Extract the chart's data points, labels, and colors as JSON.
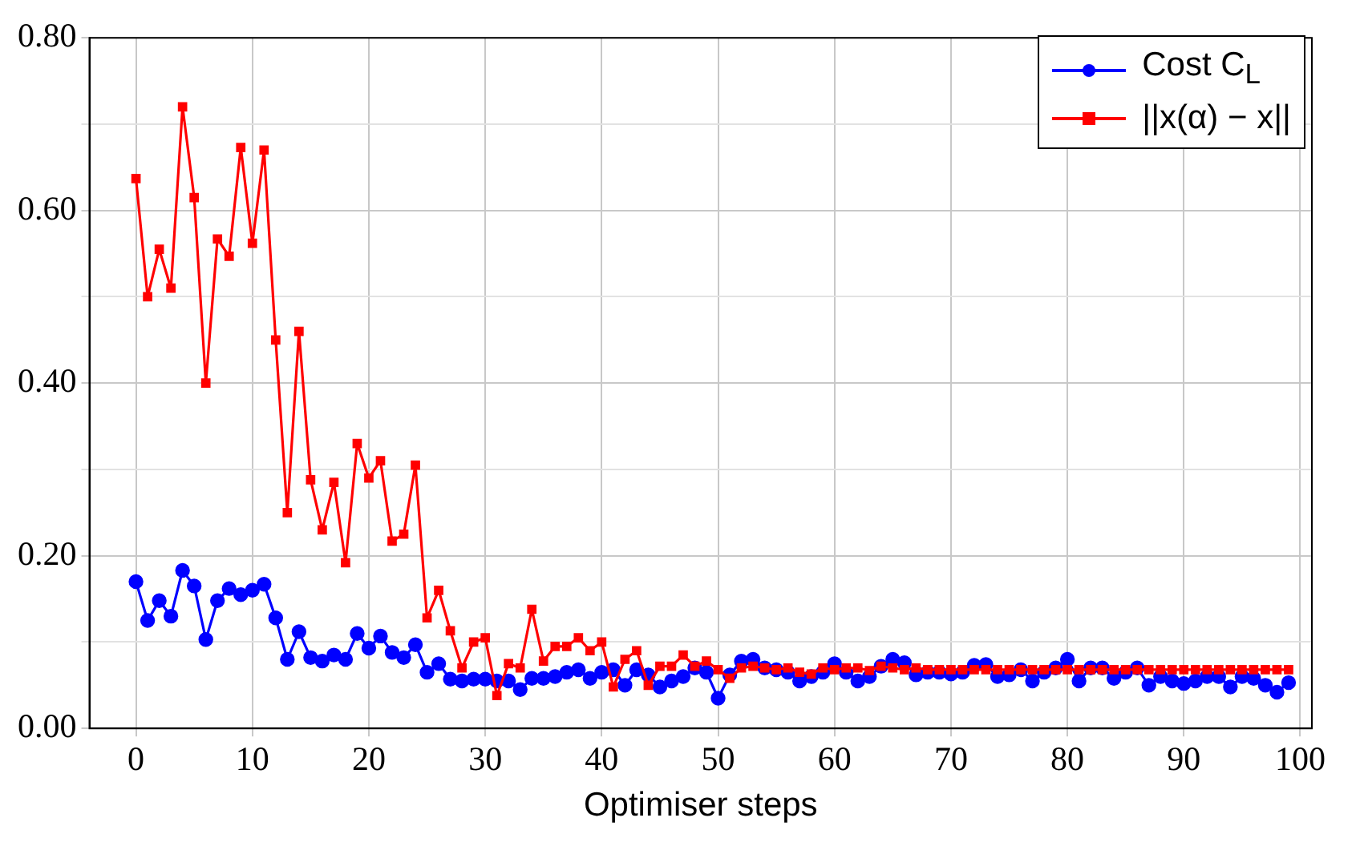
{
  "chart_data": {
    "type": "line",
    "xlabel": "Optimiser steps",
    "x": [
      0,
      1,
      2,
      3,
      4,
      5,
      6,
      7,
      8,
      9,
      10,
      11,
      12,
      13,
      14,
      15,
      16,
      17,
      18,
      19,
      20,
      21,
      22,
      23,
      24,
      25,
      26,
      27,
      28,
      29,
      30,
      31,
      32,
      33,
      34,
      35,
      36,
      37,
      38,
      39,
      40,
      41,
      42,
      43,
      44,
      45,
      46,
      47,
      48,
      49,
      50,
      51,
      52,
      53,
      54,
      55,
      56,
      57,
      58,
      59,
      60,
      61,
      62,
      63,
      64,
      65,
      66,
      67,
      68,
      69,
      70,
      71,
      72,
      73,
      74,
      75,
      76,
      77,
      78,
      79,
      80,
      81,
      82,
      83,
      84,
      85,
      86,
      87,
      88,
      89,
      90,
      91,
      92,
      93,
      94,
      95,
      96,
      97,
      98,
      99
    ],
    "series": [
      {
        "name": "Cost C$_{L}$",
        "color": "#0000ff",
        "marker": "circle",
        "values": [
          0.17,
          0.125,
          0.148,
          0.13,
          0.183,
          0.165,
          0.103,
          0.148,
          0.162,
          0.155,
          0.16,
          0.167,
          0.128,
          0.08,
          0.112,
          0.082,
          0.078,
          0.085,
          0.08,
          0.11,
          0.093,
          0.107,
          0.088,
          0.082,
          0.097,
          0.065,
          0.075,
          0.057,
          0.055,
          0.057,
          0.057,
          0.055,
          0.055,
          0.045,
          0.058,
          0.058,
          0.06,
          0.065,
          0.068,
          0.058,
          0.065,
          0.068,
          0.05,
          0.068,
          0.062,
          0.048,
          0.055,
          0.06,
          0.07,
          0.065,
          0.035,
          0.062,
          0.078,
          0.08,
          0.07,
          0.068,
          0.065,
          0.055,
          0.06,
          0.065,
          0.075,
          0.065,
          0.055,
          0.06,
          0.072,
          0.08,
          0.076,
          0.062,
          0.065,
          0.065,
          0.063,
          0.065,
          0.073,
          0.074,
          0.06,
          0.062,
          0.068,
          0.055,
          0.065,
          0.07,
          0.08,
          0.055,
          0.07,
          0.07,
          0.058,
          0.065,
          0.07,
          0.05,
          0.06,
          0.055,
          0.052,
          0.055,
          0.06,
          0.06,
          0.048,
          0.06,
          0.058,
          0.05,
          0.042,
          0.053
        ]
      },
      {
        "name": "||x(α) − x||",
        "color": "#ff0000",
        "marker": "square",
        "values": [
          0.637,
          0.5,
          0.555,
          0.51,
          0.72,
          0.615,
          0.4,
          0.567,
          0.547,
          0.673,
          0.562,
          0.67,
          0.45,
          0.25,
          0.46,
          0.288,
          0.23,
          0.285,
          0.192,
          0.33,
          0.29,
          0.31,
          0.217,
          0.225,
          0.305,
          0.128,
          0.16,
          0.113,
          0.07,
          0.1,
          0.105,
          0.038,
          0.075,
          0.07,
          0.138,
          0.078,
          0.095,
          0.095,
          0.105,
          0.09,
          0.1,
          0.048,
          0.08,
          0.09,
          0.05,
          0.072,
          0.072,
          0.085,
          0.072,
          0.078,
          0.068,
          0.058,
          0.07,
          0.072,
          0.07,
          0.068,
          0.07,
          0.065,
          0.063,
          0.07,
          0.068,
          0.07,
          0.07,
          0.067,
          0.072,
          0.07,
          0.068,
          0.07,
          0.068,
          0.068,
          0.068,
          0.068,
          0.068,
          0.068,
          0.068,
          0.068,
          0.068,
          0.068,
          0.068,
          0.068,
          0.068,
          0.068,
          0.068,
          0.068,
          0.068,
          0.068,
          0.068,
          0.068,
          0.068,
          0.068,
          0.068,
          0.068,
          0.068,
          0.068,
          0.068,
          0.068,
          0.068,
          0.068,
          0.068,
          0.068
        ]
      }
    ],
    "xlim": [
      -4,
      101
    ],
    "xticks": [
      0,
      10,
      20,
      30,
      40,
      50,
      60,
      70,
      80,
      90,
      100
    ],
    "ylim": [
      0,
      0.8
    ],
    "yticks": [
      {
        "value": 0,
        "label": "0.00"
      },
      {
        "value": 0.1,
        "label": null
      },
      {
        "value": 0.2,
        "label": "0.20"
      },
      {
        "value": 0.3,
        "label": null
      },
      {
        "value": 0.4,
        "label": "0.40"
      },
      {
        "value": 0.5,
        "label": null
      },
      {
        "value": 0.6,
        "label": "0.60"
      },
      {
        "value": 0.7,
        "label": null
      },
      {
        "value": 0.8,
        "label": "0.80"
      }
    ],
    "grid": true,
    "legend": "top right",
    "line_style": "solid"
  }
}
